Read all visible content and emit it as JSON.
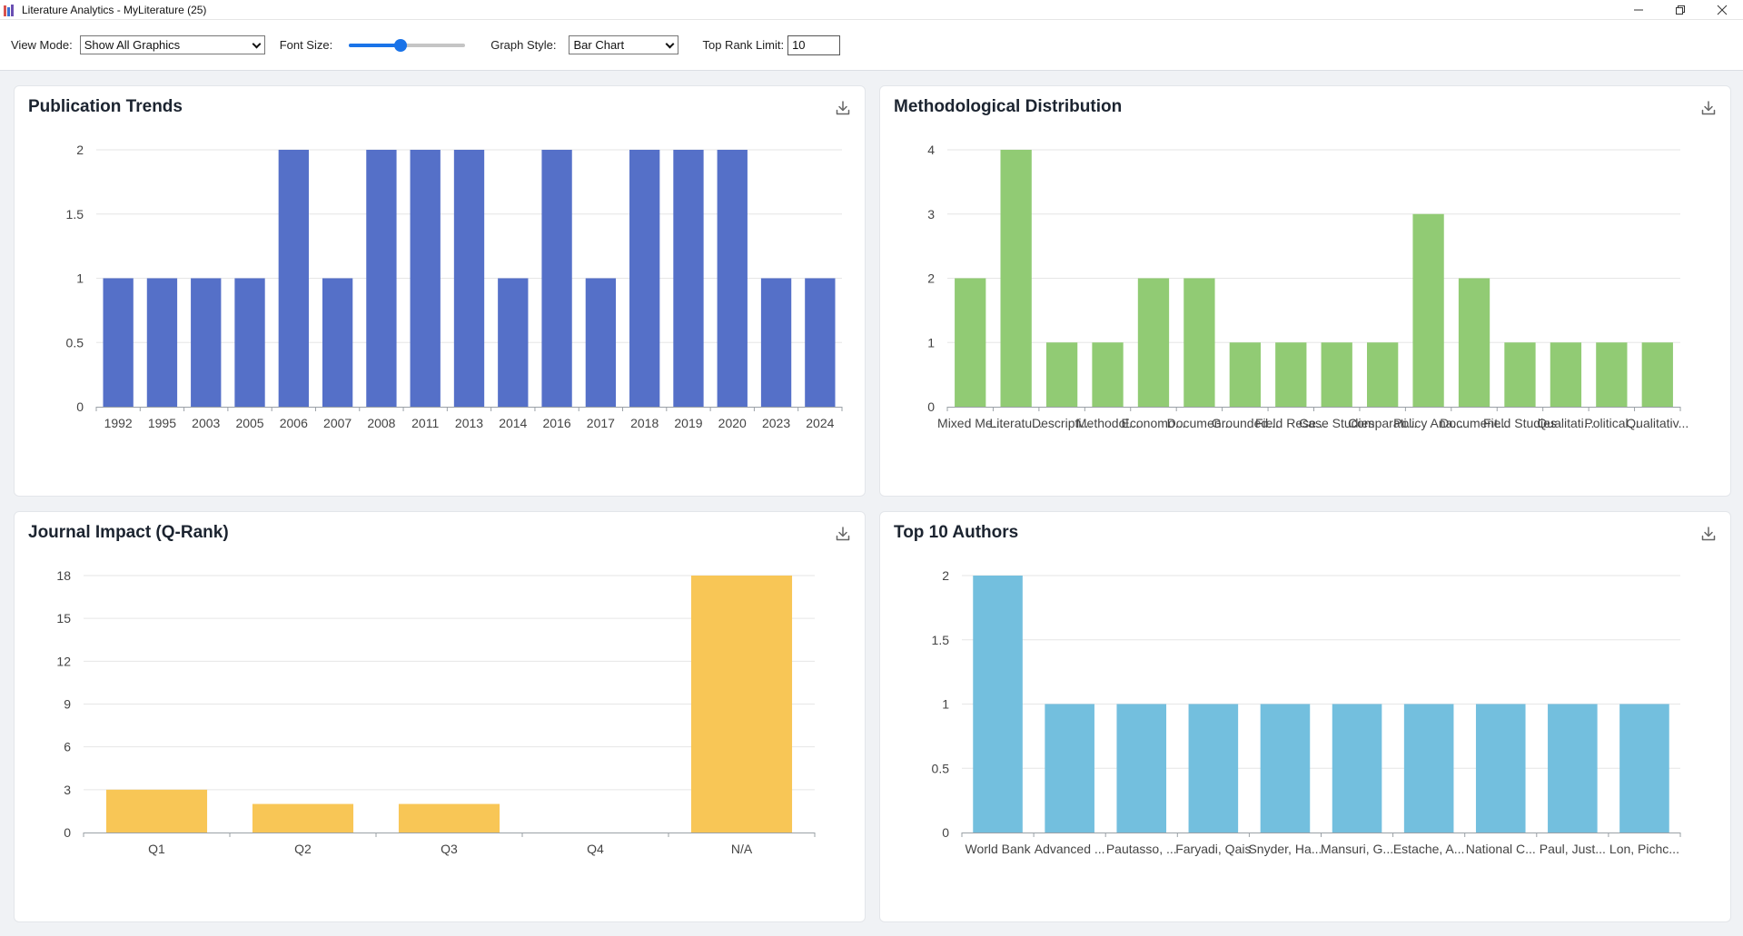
{
  "window": {
    "title": "Literature Analytics - MyLiterature (25)"
  },
  "toolbar": {
    "view_mode_label": "View Mode:",
    "view_mode_value": "Show All Graphics",
    "font_size_label": "Font Size:",
    "font_size_level": 0.44,
    "graph_style_label": "Graph Style:",
    "graph_style_value": "Bar Chart",
    "top_rank_label": "Top Rank Limit:",
    "top_rank_value": "10"
  },
  "colors": {
    "publication": "#5570c8",
    "methodology": "#91cb74",
    "journal": "#f8c656",
    "authors": "#73bfde"
  },
  "cards": {
    "publication": {
      "title": "Publication Trends"
    },
    "methodology": {
      "title": "Methodological Distribution"
    },
    "journal": {
      "title": "Journal Impact (Q-Rank)"
    },
    "authors": {
      "title": "Top 10 Authors"
    }
  },
  "chart_data": [
    {
      "type": "bar",
      "title": "Publication Trends",
      "categories": [
        "1992",
        "1995",
        "2003",
        "2005",
        "2006",
        "2007",
        "2008",
        "2011",
        "2013",
        "2014",
        "2016",
        "2017",
        "2018",
        "2019",
        "2020",
        "2023",
        "2024"
      ],
      "values": [
        1,
        1,
        1,
        1,
        2,
        1,
        2,
        2,
        2,
        1,
        2,
        1,
        2,
        2,
        2,
        1,
        1
      ],
      "yticks": [
        "0",
        "0.5",
        "1",
        "1.5",
        "2"
      ],
      "ylim": [
        0,
        2
      ],
      "grid": true
    },
    {
      "type": "bar",
      "title": "Methodological Distribution",
      "categories": [
        "Mixed Me...",
        "Literatu...",
        "Descripti...",
        "Methodol...",
        "Economo...",
        "Documen...",
        "Grounded...",
        "Field Rese...",
        "Case Studies",
        "Comparati...",
        "Policy Ana...",
        "Document...",
        "Field Studies",
        "Qualitati...",
        "Political...",
        "Qualitativ..."
      ],
      "values": [
        2,
        4,
        1,
        1,
        2,
        2,
        1,
        1,
        1,
        1,
        3,
        2,
        1,
        1,
        1,
        1
      ],
      "yticks": [
        "0",
        "1",
        "2",
        "3",
        "4"
      ],
      "ylim": [
        0,
        4
      ],
      "grid": true
    },
    {
      "type": "bar",
      "title": "Journal Impact (Q-Rank)",
      "categories": [
        "Q1",
        "Q2",
        "Q3",
        "Q4",
        "N/A"
      ],
      "values": [
        3,
        2,
        2,
        0,
        18
      ],
      "yticks": [
        "0",
        "3",
        "6",
        "9",
        "12",
        "15",
        "18"
      ],
      "ylim": [
        0,
        18
      ],
      "grid": true
    },
    {
      "type": "bar",
      "title": "Top 10 Authors",
      "categories": [
        "World Bank",
        "Advanced ...",
        "Pautasso, ...",
        "Faryadi, Qais",
        "Snyder, Ha...",
        "Mansuri, G...",
        "Estache, A...",
        "National C...",
        "Paul, Just...",
        "Lon, Pichc..."
      ],
      "values": [
        2,
        1,
        1,
        1,
        1,
        1,
        1,
        1,
        1,
        1
      ],
      "yticks": [
        "0",
        "0.5",
        "1",
        "1.5",
        "2"
      ],
      "ylim": [
        0,
        2
      ],
      "grid": true
    }
  ]
}
